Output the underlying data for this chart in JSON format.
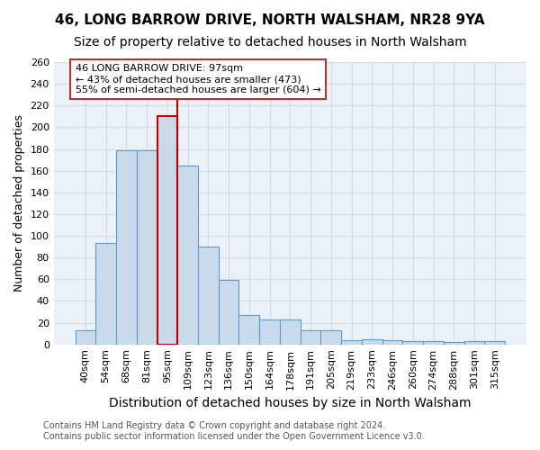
{
  "title": "46, LONG BARROW DRIVE, NORTH WALSHAM, NR28 9YA",
  "subtitle": "Size of property relative to detached houses in North Walsham",
  "xlabel": "Distribution of detached houses by size in North Walsham",
  "ylabel": "Number of detached properties",
  "categories": [
    "40sqm",
    "54sqm",
    "68sqm",
    "81sqm",
    "95sqm",
    "109sqm",
    "123sqm",
    "136sqm",
    "150sqm",
    "164sqm",
    "178sqm",
    "191sqm",
    "205sqm",
    "219sqm",
    "233sqm",
    "246sqm",
    "260sqm",
    "274sqm",
    "288sqm",
    "301sqm",
    "315sqm"
  ],
  "values": [
    13,
    93,
    179,
    179,
    210,
    165,
    90,
    59,
    27,
    23,
    23,
    13,
    13,
    4,
    5,
    4,
    3,
    3,
    2,
    3,
    3
  ],
  "bar_color": "#c9daea",
  "bar_edge_color": "#5b9bd5",
  "highlight_bar_index": 4,
  "highlight_edge_color": "#c00000",
  "vline_color": "#c00000",
  "annotation_text": "46 LONG BARROW DRIVE: 97sqm\n← 43% of detached houses are smaller (473)\n55% of semi-detached houses are larger (604) →",
  "annotation_box_color": "white",
  "annotation_box_edge_color": "#c00000",
  "ylim": [
    0,
    260
  ],
  "yticks": [
    0,
    20,
    40,
    60,
    80,
    100,
    120,
    140,
    160,
    180,
    200,
    220,
    240,
    260
  ],
  "grid_color": "#d0dce8",
  "background_color": "#eaf1f8",
  "footer_line1": "Contains HM Land Registry data © Crown copyright and database right 2024.",
  "footer_line2": "Contains public sector information licensed under the Open Government Licence v3.0.",
  "title_fontsize": 11,
  "subtitle_fontsize": 10,
  "xlabel_fontsize": 10,
  "ylabel_fontsize": 9,
  "tick_fontsize": 8,
  "annotation_fontsize": 8,
  "footer_fontsize": 7
}
